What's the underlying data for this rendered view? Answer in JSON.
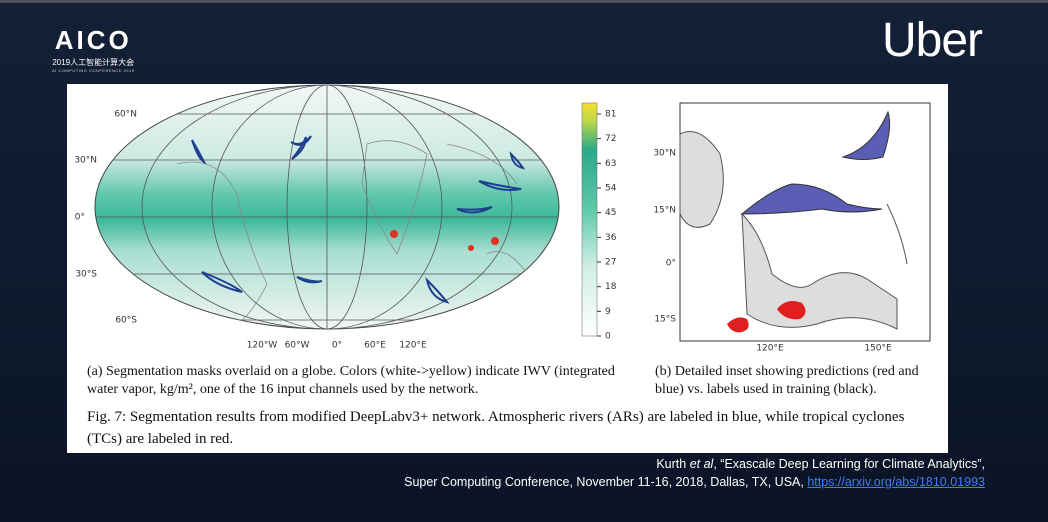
{
  "header": {
    "logo": "AICO",
    "logo_cn": "2019人工智能计算大会",
    "logo_en": "AI COMPUTING CONFERENCE 2019",
    "brand": "Uber"
  },
  "globe": {
    "lat_labels": [
      "60°N",
      "30°N",
      "0°",
      "30°S",
      "60°S"
    ],
    "lon_labels": [
      "120°W",
      "60°W",
      "0°",
      "60°E",
      "120°E"
    ]
  },
  "colorbar": {
    "lim": [
      0,
      85
    ],
    "ticks": [
      0,
      9,
      18,
      27,
      36,
      45,
      54,
      63,
      72,
      81
    ]
  },
  "inset": {
    "lat_labels": [
      "30°N",
      "15°N",
      "0°",
      "15°S"
    ],
    "lon_labels": [
      "120°E",
      "150°E"
    ]
  },
  "captions": {
    "a": "(a) Segmentation masks overlaid on a globe. Colors (white->yellow) indicate IWV (integrated water vapor, kg/m², one of the 16 input channels used by the network.",
    "b": "(b) Detailed inset showing predictions (red and blue) vs. labels used in training (black).",
    "fig": "Fig. 7: Segmentation results from modified DeepLabv3+ network. Atmospheric rivers (ARs) are labeled in blue, while tropical cyclones (TCs) are labeled in red."
  },
  "citation": {
    "author": "Kurth ",
    "etal": "et al",
    "title": ", “Exascale Deep Learning for Climate Analytics”,",
    "venue": "Super Computing Conference, November 11-16, 2018, Dallas, TX, USA, ",
    "link": "https://arxiv.org/abs/1810.01993"
  }
}
